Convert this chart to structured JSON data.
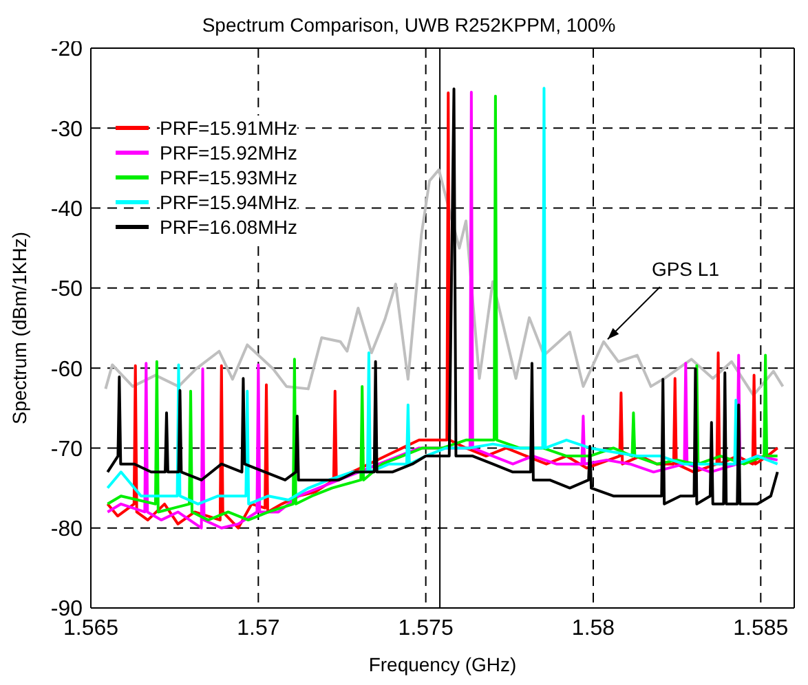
{
  "chart_data": {
    "type": "line",
    "title": "Spectrum Comparison, UWB R252KPPM, 100%",
    "xlabel": "Frequency (GHz)",
    "ylabel": "Spectrum (dBm/1KHz)",
    "xlim": [
      1.565,
      1.586
    ],
    "xticks": [
      1.565,
      1.57,
      1.575,
      1.58,
      1.585
    ],
    "ylim": [
      -90,
      -20
    ],
    "yticks": [
      -90,
      -80,
      -70,
      -60,
      -50,
      -40,
      -30,
      -20
    ],
    "grid": true,
    "legend": "top left",
    "ref_lines": [
      {
        "axis": "x",
        "value": 1.57542,
        "color": "#000000"
      }
    ],
    "annotations": [
      {
        "text": "GPS L1",
        "x": 1.58043,
        "y": -56.4
      }
    ],
    "series": [
      {
        "color": "#bfbfbf",
        "x": [
          1.56544,
          1.56564,
          1.56625,
          1.56693,
          1.56762,
          1.56814,
          1.56883,
          1.56923,
          1.56967,
          1.57044,
          1.57084,
          1.57149,
          1.57189,
          1.57245,
          1.57265,
          1.57298,
          1.57338,
          1.57378,
          1.5741,
          1.57447,
          1.57487,
          1.57511,
          1.57539,
          1.57563,
          1.576,
          1.5762,
          1.5766,
          1.577,
          1.57769,
          1.57809,
          1.57853,
          1.5793,
          1.5797,
          1.58031,
          1.58075,
          1.58131,
          1.58172,
          1.58212,
          1.58293,
          1.58357,
          1.58413,
          1.58478,
          1.58538,
          1.58566
        ],
        "values": [
          -62.6,
          -59.6,
          -62.3,
          -60.9,
          -62.3,
          -60.1,
          -57.9,
          -61.4,
          -57.1,
          -60.1,
          -62.3,
          -62.6,
          -56.2,
          -56.7,
          -57.9,
          -52.5,
          -58.1,
          -53.9,
          -49.5,
          -61.4,
          -43.3,
          -36.6,
          -35.2,
          -39.1,
          -45,
          -41.6,
          -61.3,
          -49.2,
          -61.3,
          -53.7,
          -58.4,
          -55.5,
          -62.3,
          -56.7,
          -59.2,
          -58.4,
          -62.3,
          -61.3,
          -58.9,
          -61.3,
          -59.2,
          -63.4,
          -60.4,
          -62.3
        ]
      },
      {
        "name": "PRF=15.91MHz",
        "color": "#ff0000",
        "x": [
          1.5655,
          1.5658,
          1.56629,
          1.56633,
          1.56637,
          1.5667,
          1.5672,
          1.5676,
          1.5681,
          1.56886,
          1.5689,
          1.56894,
          1.5694,
          1.5698,
          1.5702,
          1.57024,
          1.57028,
          1.5707,
          1.5712,
          1.5717,
          1.57225,
          1.57229,
          1.57233,
          1.5728,
          1.5733,
          1.5738,
          1.5743,
          1.5748,
          1.5752,
          1.57563,
          1.57567,
          1.57571,
          1.5762,
          1.5768,
          1.5774,
          1.578,
          1.5786,
          1.5792,
          1.5798,
          1.58079,
          1.58083,
          1.58087,
          1.5814,
          1.5819,
          1.5824,
          1.58244,
          1.58248,
          1.583,
          1.58369,
          1.58373,
          1.58377,
          1.5843,
          1.58476,
          1.5848,
          1.58484,
          1.5852,
          1.5855
        ],
        "values": [
          -77,
          -78.5,
          -77,
          -59.7,
          -78,
          -79,
          -77,
          -79.5,
          -78,
          -79,
          -59.7,
          -78,
          -80,
          -77,
          -77.5,
          -62.1,
          -78,
          -77,
          -76,
          -75.5,
          -74,
          -62.9,
          -74,
          -73,
          -72,
          -71,
          -70,
          -69,
          -69,
          -69,
          -25.6,
          -69,
          -70,
          -71,
          -70,
          -71,
          -72,
          -71,
          -72.5,
          -71,
          -63.1,
          -72,
          -71,
          -72,
          -72,
          -61.3,
          -72,
          -73,
          -72,
          -58.1,
          -72,
          -71,
          -72,
          -60.9,
          -72,
          -71,
          -70
        ]
      },
      {
        "name": "PRF=15.92MHz",
        "color": "#ff00ff",
        "x": [
          1.5655,
          1.5659,
          1.56661,
          1.56665,
          1.56669,
          1.5671,
          1.5676,
          1.5683,
          1.56834,
          1.56838,
          1.5689,
          1.5694,
          1.56996,
          1.57,
          1.57004,
          1.5706,
          1.5712,
          1.5718,
          1.5724,
          1.573,
          1.5736,
          1.5742,
          1.5748,
          1.5754,
          1.57632,
          1.57636,
          1.5764,
          1.577,
          1.5776,
          1.5782,
          1.5789,
          1.57966,
          1.5797,
          1.57974,
          1.5804,
          1.5811,
          1.5818,
          1.58272,
          1.58276,
          1.5828,
          1.5835,
          1.5843,
          1.58434,
          1.58438,
          1.5849,
          1.5855
        ],
        "values": [
          -78,
          -77,
          -78,
          -59.4,
          -78,
          -79,
          -78,
          -80,
          -60.1,
          -79,
          -80,
          -79.5,
          -78,
          -59.6,
          -78,
          -78,
          -76,
          -75,
          -74,
          -73,
          -72,
          -71,
          -70,
          -70,
          -70,
          -25.5,
          -70,
          -71,
          -72,
          -71,
          -72,
          -72,
          -66,
          -72,
          -71.5,
          -72,
          -73,
          -72,
          -59.4,
          -72,
          -73,
          -72,
          -58.4,
          -72,
          -71,
          -71.5
        ]
      },
      {
        "name": "PRF=15.93MHz",
        "color": "#00ee00",
        "x": [
          1.5655,
          1.5659,
          1.56693,
          1.56697,
          1.56701,
          1.56794,
          1.56798,
          1.56802,
          1.5685,
          1.5691,
          1.5697,
          1.5703,
          1.57104,
          1.57108,
          1.57112,
          1.5716,
          1.5722,
          1.57306,
          1.5731,
          1.57314,
          1.5737,
          1.5743,
          1.5749,
          1.5755,
          1.5762,
          1.57704,
          1.57708,
          1.57712,
          1.5778,
          1.5785,
          1.5792,
          1.5799,
          1.5806,
          1.58116,
          1.5812,
          1.58124,
          1.5819,
          1.5825,
          1.58305,
          1.58309,
          1.58313,
          1.5838,
          1.5845,
          1.5851,
          1.58514,
          1.58518,
          1.5855
        ],
        "values": [
          -77,
          -76,
          -77,
          -59.2,
          -78,
          -77,
          -62.9,
          -78,
          -79,
          -78,
          -79,
          -78,
          -77,
          -58.9,
          -77,
          -76,
          -75,
          -74,
          -62.3,
          -74,
          -72,
          -71,
          -70,
          -70,
          -69,
          -69,
          -26,
          -69,
          -70,
          -70,
          -71,
          -71,
          -70,
          -71,
          -65.6,
          -71,
          -72,
          -71.5,
          -72,
          -59.7,
          -72,
          -71,
          -72,
          -71,
          -58.4,
          -71,
          -71
        ]
      },
      {
        "name": "PRF=15.94MHz",
        "color": "#00ffff",
        "x": [
          1.5655,
          1.5659,
          1.5665,
          1.56758,
          1.56762,
          1.56766,
          1.5682,
          1.5688,
          1.56963,
          1.56967,
          1.56971,
          1.5703,
          1.5709,
          1.5715,
          1.5721,
          1.5728,
          1.57326,
          1.5733,
          1.57334,
          1.5739,
          1.57443,
          1.57447,
          1.57451,
          1.575,
          1.5756,
          1.5763,
          1.577,
          1.5777,
          1.57849,
          1.57853,
          1.57857,
          1.5792,
          1.5799,
          1.5806,
          1.5813,
          1.582,
          1.5827,
          1.5834,
          1.58422,
          1.58426,
          1.5843,
          1.5849,
          1.5855
        ],
        "values": [
          -75,
          -73,
          -76,
          -76,
          -59.6,
          -76,
          -77,
          -76,
          -76,
          -62.9,
          -77,
          -76,
          -76.5,
          -75,
          -74,
          -73,
          -73,
          -58.1,
          -73,
          -72,
          -72,
          -64.6,
          -72,
          -71,
          -70,
          -70,
          -69.5,
          -70,
          -70,
          -25,
          -70,
          -69,
          -70,
          -70.5,
          -71,
          -71,
          -72,
          -72,
          -72,
          -64,
          -72,
          -71,
          -72
        ]
      },
      {
        "name": "PRF=16.08MHz",
        "color": "#000000",
        "x": [
          1.5655,
          1.56581,
          1.56585,
          1.56589,
          1.5663,
          1.5668,
          1.56722,
          1.56726,
          1.5673,
          1.56762,
          1.56766,
          1.5677,
          1.5683,
          1.5689,
          1.56951,
          1.56955,
          1.56959,
          1.5702,
          1.5708,
          1.57112,
          1.57116,
          1.5712,
          1.5718,
          1.5724,
          1.5729,
          1.57346,
          1.5735,
          1.57354,
          1.574,
          1.5746,
          1.575,
          1.5754,
          1.5757,
          1.57584,
          1.5759,
          1.5764,
          1.577,
          1.5776,
          1.57813,
          1.57817,
          1.57821,
          1.5787,
          1.5793,
          1.57986,
          1.5799,
          1.57994,
          1.5806,
          1.5812,
          1.5817,
          1.58204,
          1.58208,
          1.58212,
          1.5826,
          1.58301,
          1.58305,
          1.58309,
          1.58349,
          1.58353,
          1.58357,
          1.58389,
          1.58393,
          1.58397,
          1.5843,
          1.58434,
          1.58438,
          1.5849,
          1.5853,
          1.5855
        ],
        "values": [
          -73,
          -71,
          -61.1,
          -72,
          -72,
          -73,
          -73,
          -65.6,
          -73,
          -73,
          -62.8,
          -73,
          -74,
          -72,
          -73,
          -61.3,
          -72,
          -73,
          -74,
          -73,
          -66,
          -74,
          -74,
          -74,
          -73,
          -73,
          -59.2,
          -73,
          -73,
          -72,
          -71,
          -71,
          -71,
          -25.1,
          -71,
          -71,
          -72,
          -73,
          -73,
          -59.4,
          -74,
          -74,
          -75,
          -74,
          -69.8,
          -75,
          -76,
          -76,
          -76,
          -76,
          -61.4,
          -77,
          -76,
          -76,
          -60.1,
          -77,
          -76,
          -66.8,
          -77,
          -77,
          -60.6,
          -77,
          -77,
          -64.6,
          -77,
          -77,
          -76,
          -73
        ]
      }
    ]
  }
}
